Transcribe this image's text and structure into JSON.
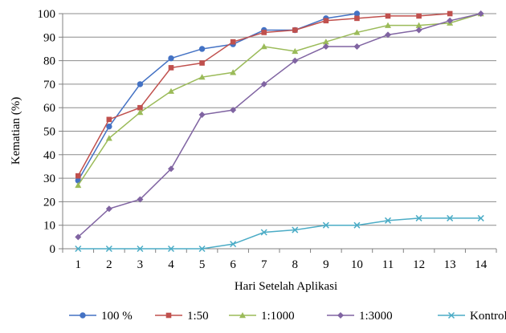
{
  "chart_data": {
    "type": "line",
    "title": "",
    "xlabel": "Hari Setelah Aplikasi",
    "ylabel": "Kematian (%)",
    "ylim": [
      0,
      100
    ],
    "yticks": [
      0,
      10,
      20,
      30,
      40,
      50,
      60,
      70,
      80,
      90,
      100
    ],
    "categories": [
      "1",
      "2",
      "3",
      "4",
      "5",
      "6",
      "7",
      "8",
      "9",
      "10",
      "11",
      "12",
      "13",
      "14"
    ],
    "grid": "horizontal",
    "legend_position": "bottom",
    "series": [
      {
        "name": "100 %",
        "color": "#4472C4",
        "marker": "circle",
        "x": [
          1,
          2,
          3,
          4,
          5,
          6,
          7,
          8,
          9,
          10
        ],
        "values": [
          29,
          52,
          70,
          81,
          85,
          87,
          93,
          93,
          98,
          100
        ]
      },
      {
        "name": "1:50",
        "color": "#C0504D",
        "marker": "square",
        "x": [
          1,
          2,
          3,
          4,
          5,
          6,
          7,
          8,
          9,
          10,
          11,
          12,
          13
        ],
        "values": [
          31,
          55,
          60,
          77,
          79,
          88,
          92,
          93,
          97,
          98,
          99,
          99,
          100
        ]
      },
      {
        "name": "1:1000",
        "color": "#9BBB59",
        "marker": "triangle",
        "x": [
          1,
          2,
          3,
          4,
          5,
          6,
          7,
          8,
          9,
          10,
          11,
          12,
          13,
          14
        ],
        "values": [
          27,
          47,
          58,
          67,
          73,
          75,
          86,
          84,
          88,
          92,
          95,
          95,
          96,
          100
        ]
      },
      {
        "name": "1:3000",
        "color": "#8064A2",
        "marker": "diamond",
        "x": [
          1,
          2,
          3,
          4,
          5,
          6,
          7,
          8,
          9,
          10,
          11,
          12,
          13,
          14
        ],
        "values": [
          5,
          17,
          21,
          34,
          57,
          59,
          70,
          80,
          86,
          86,
          91,
          93,
          97,
          100
        ]
      },
      {
        "name": "Kontrol",
        "color": "#4BACC6",
        "marker": "x",
        "x": [
          1,
          2,
          3,
          4,
          5,
          6,
          7,
          8,
          9,
          10,
          11,
          12,
          13,
          14
        ],
        "values": [
          0,
          0,
          0,
          0,
          0,
          2,
          7,
          8,
          10,
          10,
          12,
          13,
          13,
          13
        ]
      }
    ]
  }
}
